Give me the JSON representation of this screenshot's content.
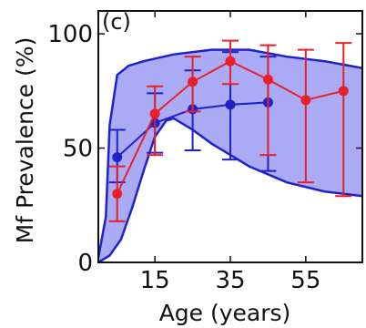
{
  "chart_data": {
    "type": "line",
    "panel_label": "(c)",
    "xlabel": "Age (years)",
    "ylabel": "Mf Prevalence (%)",
    "xlim": [
      0,
      70
    ],
    "ylim": [
      0,
      110
    ],
    "x_ticks": [
      {
        "value": 15,
        "label": "15"
      },
      {
        "value": 35,
        "label": "35"
      },
      {
        "value": 55,
        "label": "55"
      }
    ],
    "y_ticks": [
      {
        "value": 0,
        "label": "0"
      },
      {
        "value": 50,
        "label": "50"
      },
      {
        "value": 100,
        "label": "100"
      }
    ],
    "band": {
      "color": "#aaaaf5",
      "edge_color": "#1f22c8",
      "upper": [
        [
          0,
          2
        ],
        [
          2,
          20
        ],
        [
          3,
          60
        ],
        [
          5,
          82
        ],
        [
          8,
          86
        ],
        [
          12,
          88
        ],
        [
          20,
          91
        ],
        [
          30,
          93
        ],
        [
          40,
          93
        ],
        [
          50,
          90
        ],
        [
          60,
          88
        ],
        [
          70,
          85
        ]
      ],
      "lower": [
        [
          0,
          0
        ],
        [
          3,
          3
        ],
        [
          6,
          10
        ],
        [
          9,
          24
        ],
        [
          12,
          40
        ],
        [
          15,
          55
        ],
        [
          18,
          62
        ],
        [
          20,
          63
        ],
        [
          25,
          58
        ],
        [
          30,
          52
        ],
        [
          40,
          42
        ],
        [
          50,
          35
        ],
        [
          60,
          31
        ],
        [
          70,
          29
        ]
      ]
    },
    "series": [
      {
        "color": "#1f22c8",
        "points": [
          {
            "x": 5,
            "y": 46,
            "lo": 35,
            "hi": 58
          },
          {
            "x": 15,
            "y": 61,
            "lo": 48,
            "hi": 74
          },
          {
            "x": 25,
            "y": 67,
            "lo": 49,
            "hi": 84
          },
          {
            "x": 35,
            "y": 69,
            "lo": 45,
            "hi": 92
          },
          {
            "x": 45,
            "y": 70,
            "lo": 40,
            "hi": 90
          }
        ]
      },
      {
        "color": "#e8202a",
        "points": [
          {
            "x": 5,
            "y": 30,
            "lo": 18,
            "hi": 42
          },
          {
            "x": 15,
            "y": 65,
            "lo": 47,
            "hi": 77
          },
          {
            "x": 25,
            "y": 79,
            "lo": 66,
            "hi": 90
          },
          {
            "x": 35,
            "y": 88,
            "lo": 78,
            "hi": 97
          },
          {
            "x": 45,
            "y": 80,
            "lo": 47,
            "hi": 95
          },
          {
            "x": 55,
            "y": 71,
            "lo": 35,
            "hi": 93
          },
          {
            "x": 65,
            "y": 75,
            "lo": 29,
            "hi": 96
          }
        ]
      }
    ]
  }
}
